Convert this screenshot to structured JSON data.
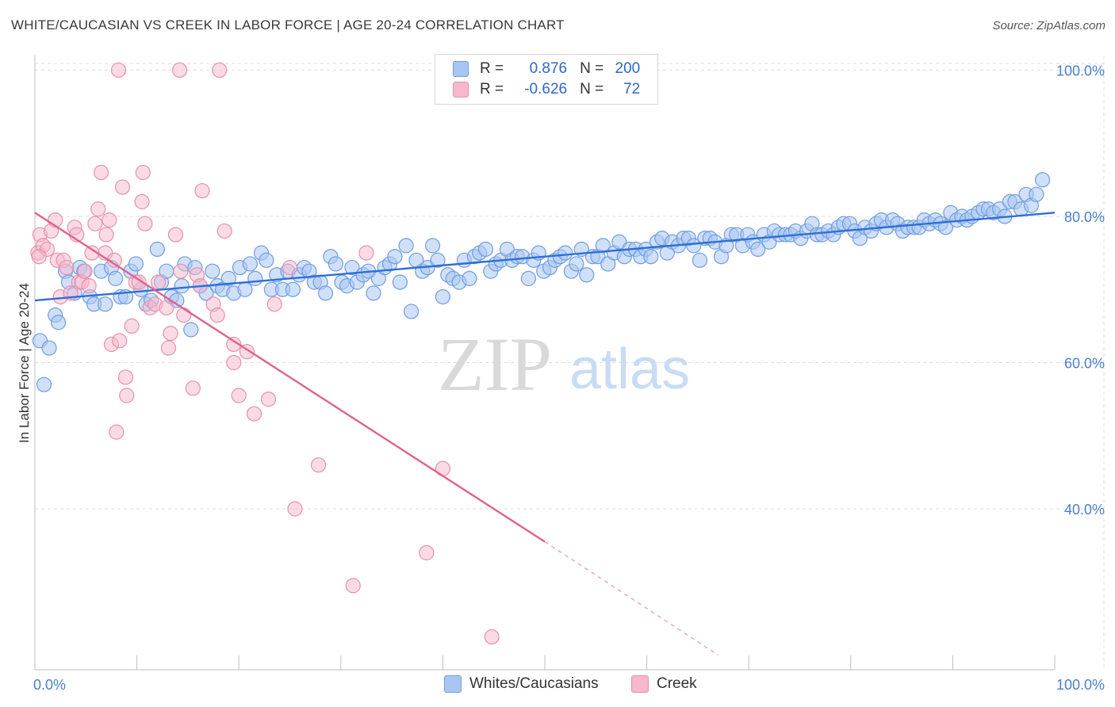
{
  "header": {
    "title": "WHITE/CAUCASIAN VS CREEK IN LABOR FORCE | AGE 20-24 CORRELATION CHART",
    "source": "Source: ZipAtlas.com"
  },
  "legend": {
    "rows": [
      {
        "r_label": "R =",
        "r_value": "0.876",
        "n_label": "N =",
        "n_value": "200",
        "color": "#a9c6f2",
        "border": "#6f9de0"
      },
      {
        "r_label": "R =",
        "r_value": "-0.626",
        "n_label": "N =",
        "n_value": "72",
        "color": "#f6b8cb",
        "border": "#e890aa"
      }
    ]
  },
  "watermark": {
    "zip": "ZIP",
    "atlas": "atlas"
  },
  "colors": {
    "blue_fill": "#a9c6f2",
    "blue_stroke": "#6f9de0",
    "blue_line": "#2e6fd6",
    "pink_fill": "#f6b8cb",
    "pink_stroke": "#e890aa",
    "pink_line": "#e0628f",
    "grid": "#dedede",
    "tick_text": "#4a7fd0"
  },
  "chart_data": {
    "type": "scatter",
    "ylabel": "In Labor Force | Age 20-24",
    "xlim": [
      0,
      100
    ],
    "ylim": [
      18,
      102
    ],
    "x_tick_labels": [
      {
        "value": 0,
        "label": "0.0%"
      },
      {
        "value": 100,
        "label": "100.0%"
      }
    ],
    "y_tick_labels": [
      {
        "value": 100,
        "label": "100.0%"
      },
      {
        "value": 80,
        "label": "80.0%"
      },
      {
        "value": 60,
        "label": "60.0%"
      },
      {
        "value": 40,
        "label": "40.0%"
      }
    ],
    "grid": true,
    "series": [
      {
        "name": "Whites/Caucasians",
        "r": 0.876,
        "n": 200,
        "trend": {
          "x": [
            0,
            100
          ],
          "y": [
            68.5,
            80.5
          ]
        },
        "points": [
          [
            0.5,
            63
          ],
          [
            0.9,
            57
          ],
          [
            1.4,
            62
          ],
          [
            2,
            66.5
          ],
          [
            2.3,
            65.5
          ],
          [
            3,
            72.5
          ],
          [
            3.3,
            71
          ],
          [
            3.9,
            69.5
          ],
          [
            4.4,
            73
          ],
          [
            4.8,
            72.5
          ],
          [
            5.4,
            69
          ],
          [
            5.8,
            68
          ],
          [
            6.5,
            72.5
          ],
          [
            6.9,
            68
          ],
          [
            7.5,
            73
          ],
          [
            7.9,
            71.5
          ],
          [
            8.4,
            69
          ],
          [
            8.9,
            69
          ],
          [
            9.4,
            72.5
          ],
          [
            9.9,
            73.5
          ],
          [
            10.4,
            70
          ],
          [
            10.9,
            68
          ],
          [
            11.4,
            68.5
          ],
          [
            12,
            75.5
          ],
          [
            12.4,
            71
          ],
          [
            12.9,
            72.5
          ],
          [
            13.4,
            69
          ],
          [
            13.9,
            68.5
          ],
          [
            14.4,
            70.5
          ],
          [
            14.7,
            73.5
          ],
          [
            15.3,
            64.5
          ],
          [
            15.7,
            73
          ],
          [
            16.2,
            70.5
          ],
          [
            16.8,
            69.5
          ],
          [
            17.4,
            72.5
          ],
          [
            17.9,
            70.5
          ],
          [
            18.4,
            70
          ],
          [
            19,
            71.5
          ],
          [
            19.5,
            69.5
          ],
          [
            20.1,
            73
          ],
          [
            20.6,
            70
          ],
          [
            21.1,
            73.5
          ],
          [
            21.6,
            71.5
          ],
          [
            22.2,
            75
          ],
          [
            22.7,
            74
          ],
          [
            23.2,
            70
          ],
          [
            23.7,
            72
          ],
          [
            24.3,
            70
          ],
          [
            24.8,
            72.5
          ],
          [
            25.3,
            70
          ],
          [
            25.9,
            72
          ],
          [
            26.4,
            73
          ],
          [
            26.9,
            72.5
          ],
          [
            27.4,
            71
          ],
          [
            28,
            71
          ],
          [
            28.5,
            69.5
          ],
          [
            29,
            74.5
          ],
          [
            29.5,
            73.5
          ],
          [
            30.1,
            71
          ],
          [
            30.6,
            70.5
          ],
          [
            31.1,
            73
          ],
          [
            31.6,
            71
          ],
          [
            32.2,
            72
          ],
          [
            32.7,
            72.5
          ],
          [
            33.2,
            69.5
          ],
          [
            33.7,
            71.5
          ],
          [
            34.3,
            73
          ],
          [
            34.8,
            73.5
          ],
          [
            35.3,
            74.5
          ],
          [
            35.8,
            71
          ],
          [
            36.4,
            76
          ],
          [
            36.9,
            67
          ],
          [
            37.4,
            74
          ],
          [
            38,
            72.5
          ],
          [
            38.5,
            73
          ],
          [
            39,
            76
          ],
          [
            39.5,
            74
          ],
          [
            40,
            69
          ],
          [
            40.5,
            72
          ],
          [
            41,
            71.5
          ],
          [
            41.6,
            71
          ],
          [
            42.1,
            74
          ],
          [
            42.6,
            71.5
          ],
          [
            43.1,
            74.5
          ],
          [
            43.6,
            75
          ],
          [
            44.2,
            75.5
          ],
          [
            44.7,
            72.5
          ],
          [
            45.2,
            73.5
          ],
          [
            45.7,
            74
          ],
          [
            46.3,
            75.5
          ],
          [
            46.8,
            74
          ],
          [
            47.3,
            74.5
          ],
          [
            47.8,
            74.5
          ],
          [
            48.4,
            71.5
          ],
          [
            48.9,
            74
          ],
          [
            49.4,
            75
          ],
          [
            49.9,
            72.5
          ],
          [
            50.5,
            73
          ],
          [
            51,
            74
          ],
          [
            51.5,
            74.5
          ],
          [
            52,
            75
          ],
          [
            52.6,
            72.5
          ],
          [
            53.1,
            73.5
          ],
          [
            53.6,
            75.5
          ],
          [
            54.1,
            72
          ],
          [
            54.7,
            74.5
          ],
          [
            55.2,
            74.5
          ],
          [
            55.7,
            76
          ],
          [
            56.2,
            73.5
          ],
          [
            56.8,
            75
          ],
          [
            57.3,
            76.5
          ],
          [
            57.8,
            74.5
          ],
          [
            58.3,
            75.5
          ],
          [
            58.9,
            75.5
          ],
          [
            59.4,
            74.5
          ],
          [
            59.9,
            75.5
          ],
          [
            60.4,
            74.5
          ],
          [
            61,
            76.5
          ],
          [
            61.5,
            77
          ],
          [
            62,
            75
          ],
          [
            62.5,
            76.5
          ],
          [
            63.1,
            76
          ],
          [
            63.6,
            77
          ],
          [
            64.1,
            77
          ],
          [
            64.6,
            76
          ],
          [
            65.2,
            74
          ],
          [
            65.7,
            77
          ],
          [
            66.2,
            77
          ],
          [
            66.7,
            76.5
          ],
          [
            67.3,
            74.5
          ],
          [
            67.8,
            76
          ],
          [
            68.3,
            77.5
          ],
          [
            68.8,
            77.5
          ],
          [
            69.4,
            76
          ],
          [
            69.9,
            77.5
          ],
          [
            70.4,
            76.5
          ],
          [
            70.9,
            75.5
          ],
          [
            71.5,
            77.5
          ],
          [
            72,
            76.5
          ],
          [
            72.5,
            78
          ],
          [
            73,
            77.5
          ],
          [
            73.6,
            77.5
          ],
          [
            74.1,
            77.5
          ],
          [
            74.6,
            78
          ],
          [
            75.1,
            77
          ],
          [
            75.7,
            78
          ],
          [
            76.2,
            79
          ],
          [
            76.7,
            77.5
          ],
          [
            77.2,
            77.5
          ],
          [
            77.8,
            78
          ],
          [
            78.3,
            77.5
          ],
          [
            78.8,
            78.5
          ],
          [
            79.3,
            79
          ],
          [
            79.9,
            79
          ],
          [
            80.4,
            78
          ],
          [
            80.9,
            77
          ],
          [
            81.4,
            78.5
          ],
          [
            82,
            78
          ],
          [
            82.5,
            79
          ],
          [
            83,
            79.5
          ],
          [
            83.5,
            78.5
          ],
          [
            84.1,
            79.5
          ],
          [
            84.6,
            79
          ],
          [
            85.1,
            78
          ],
          [
            85.6,
            78.5
          ],
          [
            86.2,
            78.5
          ],
          [
            86.7,
            78.5
          ],
          [
            87.2,
            79.5
          ],
          [
            87.7,
            79
          ],
          [
            88.3,
            79.5
          ],
          [
            88.8,
            79
          ],
          [
            89.3,
            78.5
          ],
          [
            89.8,
            80.5
          ],
          [
            90.4,
            79.5
          ],
          [
            90.9,
            80
          ],
          [
            91.4,
            79.5
          ],
          [
            91.9,
            80
          ],
          [
            92.5,
            80.5
          ],
          [
            93,
            81
          ],
          [
            93.5,
            81
          ],
          [
            94,
            80.5
          ],
          [
            94.6,
            81
          ],
          [
            95.1,
            80
          ],
          [
            95.6,
            82
          ],
          [
            96.1,
            82
          ],
          [
            96.7,
            81
          ],
          [
            97.2,
            83
          ],
          [
            97.7,
            81.5
          ],
          [
            98.2,
            83
          ],
          [
            98.8,
            85
          ]
        ]
      },
      {
        "name": "Creek",
        "r": -0.626,
        "n": 72,
        "trend": {
          "x": [
            0,
            50
          ],
          "y": [
            80.5,
            35.5
          ],
          "dashed_to": {
            "x": 67,
            "y": 20
          }
        },
        "points": [
          [
            0.3,
            75
          ],
          [
            0.5,
            77.5
          ],
          [
            0.8,
            76
          ],
          [
            1.2,
            75.5
          ],
          [
            1.6,
            78
          ],
          [
            2,
            79.5
          ],
          [
            2.2,
            74
          ],
          [
            2.5,
            69
          ],
          [
            2.8,
            74
          ],
          [
            3.1,
            73
          ],
          [
            3.5,
            69.5
          ],
          [
            3.9,
            78.5
          ],
          [
            4.1,
            77.5
          ],
          [
            4.3,
            71
          ],
          [
            4.6,
            71
          ],
          [
            4.9,
            72.5
          ],
          [
            5.3,
            70.5
          ],
          [
            5.6,
            75
          ],
          [
            5.9,
            79
          ],
          [
            6.2,
            81
          ],
          [
            6.5,
            86
          ],
          [
            6.9,
            75
          ],
          [
            7,
            77.5
          ],
          [
            7.3,
            79.5
          ],
          [
            7.5,
            62.5
          ],
          [
            7.8,
            74
          ],
          [
            8,
            50.5
          ],
          [
            8.3,
            63
          ],
          [
            8.6,
            84
          ],
          [
            8.9,
            58
          ],
          [
            9,
            55.5
          ],
          [
            9.5,
            65
          ],
          [
            9.9,
            71
          ],
          [
            10.2,
            71
          ],
          [
            10.5,
            82
          ],
          [
            10.6,
            86
          ],
          [
            10.8,
            79
          ],
          [
            11.3,
            67.5
          ],
          [
            11.8,
            68
          ],
          [
            12.1,
            71
          ],
          [
            12.9,
            67.5
          ],
          [
            13.1,
            62
          ],
          [
            13.3,
            64
          ],
          [
            13.8,
            77.5
          ],
          [
            14.3,
            72.5
          ],
          [
            14.6,
            66.5
          ],
          [
            15.5,
            56.5
          ],
          [
            15.9,
            72
          ],
          [
            16.2,
            70.5
          ],
          [
            16.4,
            83.5
          ],
          [
            17.5,
            68
          ],
          [
            17.9,
            66.5
          ],
          [
            18.6,
            78
          ],
          [
            19.5,
            60
          ],
          [
            20,
            55.5
          ],
          [
            20.8,
            61.5
          ],
          [
            21.5,
            53
          ],
          [
            22.9,
            55
          ],
          [
            23.5,
            68
          ],
          [
            25,
            73
          ],
          [
            25.5,
            40
          ],
          [
            27.8,
            46
          ],
          [
            31.2,
            29.5
          ],
          [
            32.5,
            75
          ],
          [
            38.4,
            34
          ],
          [
            40,
            45.5
          ],
          [
            8.2,
            100
          ],
          [
            14.2,
            100
          ],
          [
            18.1,
            100
          ],
          [
            19.5,
            62.5
          ],
          [
            0.4,
            74.5
          ],
          [
            44.8,
            22.5
          ]
        ]
      }
    ]
  },
  "bottom_legend": [
    {
      "label": "Whites/Caucasians",
      "color": "#a9c6f2",
      "border": "#6f9de0"
    },
    {
      "label": "Creek",
      "color": "#f6b8cb",
      "border": "#e890aa"
    }
  ]
}
